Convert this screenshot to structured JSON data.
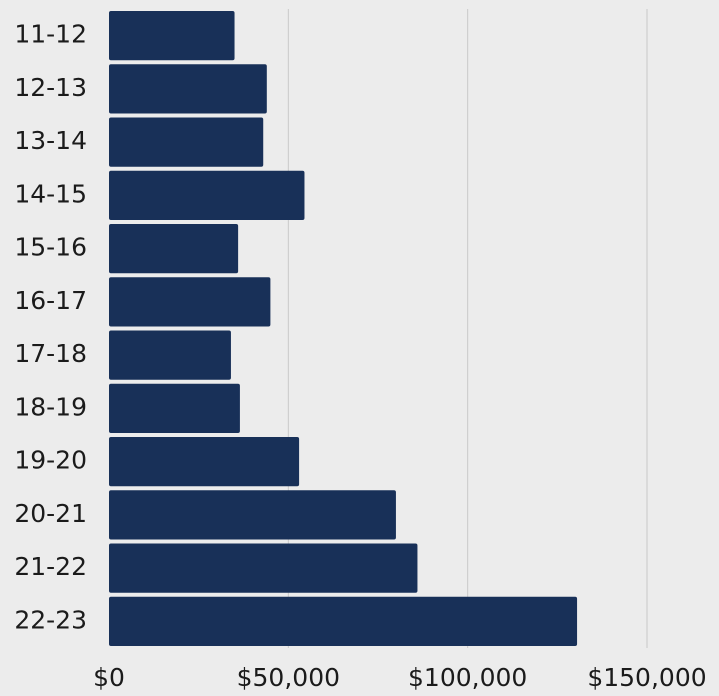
{
  "chart_data": {
    "type": "bar",
    "orientation": "horizontal",
    "title": "",
    "xlabel": "",
    "ylabel": "",
    "categories": [
      "11-12",
      "12-13",
      "13-14",
      "14-15",
      "15-16",
      "16-17",
      "17-18",
      "18-19",
      "19-20",
      "20-21",
      "21-22",
      "22-23"
    ],
    "values": [
      35000,
      44000,
      43000,
      54500,
      36000,
      45000,
      34000,
      36500,
      53000,
      80000,
      86000,
      130500
    ],
    "x_ticks": [
      0,
      50000,
      100000,
      150000
    ],
    "x_tick_labels": [
      "$0",
      "$50,000",
      "$100,000",
      "$150,000"
    ],
    "xlim": [
      0,
      150000
    ],
    "grid": "vertical",
    "legend": "none",
    "colors": {
      "bar": "#183058",
      "background": "#ececec",
      "grid": "#c9c9c9",
      "text": "#1b1b1b"
    }
  }
}
